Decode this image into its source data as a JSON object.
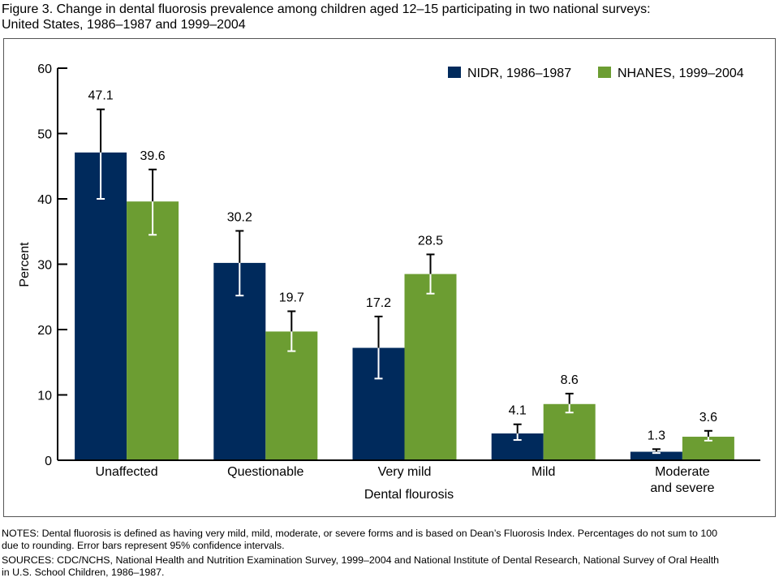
{
  "figure": {
    "title_line1": "Figure 3. Change in dental fluorosis prevalence among children aged 12–15 participating in two national surveys:",
    "title_line2": "United States, 1986–1987 and 1999–2004",
    "notes_line1": "NOTES: Dental fluorosis is defined as having very mild, mild, moderate, or severe forms and is based on Dean’s Fluorosis Index. Percentages do not sum to 100",
    "notes_line2": "due to rounding. Error bars represent 95% confidence intervals.",
    "sources_line1": "SOURCES: CDC/NCHS, National Health and Nutrition Examination Survey, 1999–2004 and National Institute of Dental Research, National Survey of Oral Health",
    "sources_line2": "in U.S. School Children, 1986–1987."
  },
  "chart_data": {
    "type": "bar",
    "xlabel": "Dental flourosis",
    "ylabel": "Percent",
    "ylim": [
      0,
      60
    ],
    "yticks": [
      "0",
      "10",
      "20",
      "30",
      "40",
      "50",
      "60"
    ],
    "grid": false,
    "legend_position": "top-right",
    "categories": [
      [
        "Unaffected"
      ],
      [
        "Questionable"
      ],
      [
        "Very mild"
      ],
      [
        "Mild"
      ],
      [
        "Moderate",
        "and severe"
      ]
    ],
    "series": [
      {
        "name": "NIDR, 1986–1987",
        "color": "#002a5c",
        "values": [
          47.1,
          30.2,
          17.2,
          4.1,
          1.3
        ],
        "labels": [
          "47.1",
          "30.2",
          "17.2",
          "4.1",
          "1.3"
        ],
        "ci_low": [
          40.0,
          25.2,
          12.5,
          3.1,
          1.1
        ],
        "ci_high": [
          53.7,
          35.1,
          22.0,
          5.5,
          1.7
        ]
      },
      {
        "name": "NHANES, 1999–2004",
        "color": "#6c9d32",
        "values": [
          39.6,
          19.7,
          28.5,
          8.6,
          3.6
        ],
        "labels": [
          "39.6",
          "19.7",
          "28.5",
          "8.6",
          "3.6"
        ],
        "ci_low": [
          34.5,
          16.7,
          25.5,
          7.3,
          3.0
        ],
        "ci_high": [
          44.5,
          22.8,
          31.5,
          10.2,
          4.5
        ]
      }
    ]
  }
}
